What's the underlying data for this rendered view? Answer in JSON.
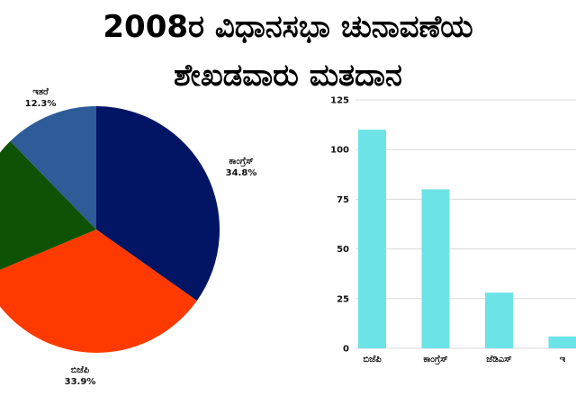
{
  "title": {
    "line1": "2008ರ ವಿಧಾನಸಭಾ ಚುನಾವಣೆಯ",
    "line2": "ಶೇಖಡವಾರು ಮತದಾನ"
  },
  "chart_data": [
    {
      "type": "pie",
      "slices": [
        {
          "label": "ಕಾಂಗ್ರೆಸ್",
          "value": 34.8,
          "pct_label": "34.8%",
          "color": "#021564"
        },
        {
          "label": "ಬಿಜೆಪಿ",
          "value": 33.9,
          "pct_label": "33.9%",
          "color": "#ff3a00"
        },
        {
          "label": "",
          "value": 19.0,
          "pct_label": "",
          "color": "#0e5205"
        },
        {
          "label": "ಇತರೆ",
          "value": 12.3,
          "pct_label": "12.3%",
          "color": "#2e5c99"
        }
      ],
      "start_angle_deg": 0
    },
    {
      "type": "bar",
      "categories": [
        "ಬಿಜೆಪಿ",
        "ಕಾಂಗ್ರೆಸ್",
        "ಜೆಡಿಎಸ್",
        "ಇ"
      ],
      "values": [
        110,
        80,
        28,
        6
      ],
      "ylim": [
        0,
        125
      ],
      "yticks": [
        0,
        25,
        50,
        75,
        100,
        125
      ],
      "bar_color": "#6ce3e6",
      "grid": true,
      "grid_color": "#d9d9d9"
    }
  ]
}
